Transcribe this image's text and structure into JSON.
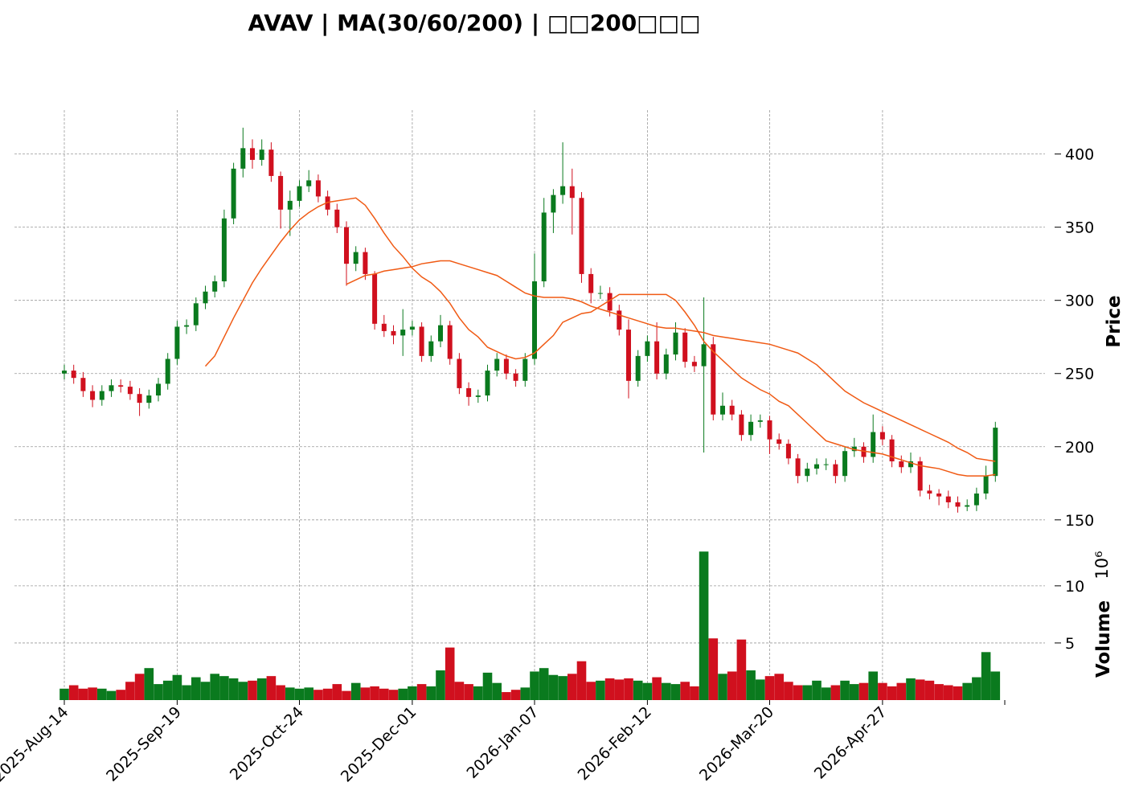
{
  "chart_data": {
    "type": "candlestick",
    "title": "AVAV  |  MA(30/60/200)  |  □□200□□□",
    "categories": [
      "2025-Aug-14",
      null,
      null,
      null,
      null,
      null,
      null,
      null,
      null,
      null,
      null,
      null,
      "2025-Sep-19",
      null,
      null,
      null,
      null,
      null,
      null,
      null,
      null,
      null,
      null,
      null,
      null,
      "2025-Oct-24",
      null,
      null,
      null,
      null,
      null,
      null,
      null,
      null,
      null,
      null,
      null,
      "2025-Dec-01",
      null,
      null,
      null,
      null,
      null,
      null,
      null,
      null,
      null,
      null,
      null,
      null,
      "2026-Jan-07",
      null,
      null,
      null,
      null,
      null,
      null,
      null,
      null,
      null,
      null,
      null,
      "2026-Feb-12",
      null,
      null,
      null,
      null,
      null,
      null,
      null,
      null,
      null,
      null,
      null,
      null,
      "2026-Mar-20",
      null,
      null,
      null,
      null,
      null,
      null,
      null,
      null,
      null,
      null,
      null,
      "2026-Apr-27",
      null,
      null,
      null,
      null,
      null,
      null,
      null,
      null,
      null,
      null,
      null,
      null
    ],
    "open": [
      250,
      252,
      247,
      238,
      232,
      238,
      242,
      241,
      236,
      230,
      235,
      243,
      260,
      282,
      283,
      298,
      306,
      313,
      356,
      390,
      404,
      396,
      403,
      385,
      362,
      368,
      378,
      382,
      371,
      362,
      350,
      325,
      333,
      318,
      284,
      279,
      276,
      280,
      282,
      262,
      272,
      283,
      260,
      240,
      234,
      235,
      252,
      260,
      250,
      245,
      260,
      313,
      360,
      372,
      378,
      370,
      318,
      305,
      305,
      293,
      280,
      245,
      262,
      272,
      250,
      263,
      278,
      258,
      255,
      270,
      222,
      228,
      222,
      208,
      217,
      218,
      205,
      202,
      192,
      180,
      185,
      188,
      188,
      180,
      197,
      200,
      193,
      210,
      205,
      190,
      186,
      190,
      170,
      168,
      166,
      162,
      159,
      160,
      168,
      180
    ],
    "high": [
      256,
      256,
      251,
      242,
      242,
      246,
      246,
      245,
      240,
      239,
      247,
      264,
      286,
      287,
      302,
      310,
      317,
      362,
      394,
      418,
      410,
      410,
      408,
      388,
      375,
      382,
      389,
      386,
      375,
      366,
      354,
      337,
      336,
      320,
      290,
      283,
      294,
      286,
      285,
      276,
      290,
      286,
      264,
      244,
      239,
      256,
      264,
      263,
      253,
      264,
      332,
      370,
      376,
      408,
      390,
      374,
      322,
      310,
      309,
      297,
      287,
      266,
      276,
      285,
      267,
      285,
      281,
      262,
      302,
      275,
      237,
      232,
      225,
      222,
      222,
      221,
      209,
      205,
      195,
      189,
      192,
      192,
      191,
      200,
      206,
      203,
      222,
      214,
      208,
      194,
      196,
      193,
      174,
      171,
      170,
      166,
      164,
      172,
      187,
      217
    ],
    "low": [
      246,
      243,
      234,
      227,
      228,
      234,
      237,
      232,
      221,
      226,
      231,
      239,
      256,
      277,
      279,
      294,
      302,
      309,
      352,
      384,
      390,
      392,
      381,
      349,
      344,
      364,
      374,
      367,
      358,
      346,
      310,
      320,
      314,
      280,
      275,
      270,
      262,
      276,
      258,
      258,
      268,
      256,
      236,
      228,
      230,
      231,
      248,
      246,
      241,
      241,
      256,
      309,
      346,
      366,
      345,
      312,
      298,
      301,
      289,
      276,
      233,
      241,
      258,
      246,
      246,
      259,
      254,
      251,
      196,
      218,
      218,
      218,
      204,
      204,
      213,
      195,
      198,
      188,
      175,
      176,
      181,
      184,
      175,
      176,
      193,
      189,
      189,
      201,
      186,
      182,
      182,
      166,
      164,
      160,
      158,
      155,
      156,
      156,
      164,
      176
    ],
    "close": [
      252,
      247,
      238,
      232,
      238,
      242,
      241,
      236,
      230,
      235,
      243,
      260,
      282,
      283,
      298,
      306,
      313,
      356,
      390,
      404,
      396,
      403,
      385,
      362,
      368,
      378,
      382,
      371,
      362,
      350,
      325,
      333,
      318,
      284,
      279,
      276,
      280,
      282,
      262,
      272,
      283,
      260,
      240,
      234,
      235,
      252,
      260,
      250,
      245,
      260,
      313,
      360,
      372,
      378,
      370,
      318,
      305,
      305,
      293,
      280,
      245,
      262,
      272,
      250,
      263,
      278,
      258,
      255,
      270,
      222,
      228,
      222,
      208,
      217,
      218,
      205,
      202,
      192,
      180,
      185,
      188,
      188,
      180,
      197,
      200,
      193,
      210,
      205,
      190,
      186,
      190,
      170,
      168,
      166,
      162,
      159,
      160,
      168,
      180,
      213
    ],
    "volume": [
      1.0,
      1.3,
      1.0,
      1.1,
      1.0,
      0.8,
      0.9,
      1.6,
      2.3,
      2.8,
      1.4,
      1.7,
      2.2,
      1.3,
      2.0,
      1.6,
      2.3,
      2.1,
      1.9,
      1.6,
      1.7,
      1.9,
      2.1,
      1.3,
      1.1,
      1.0,
      1.1,
      0.9,
      1.0,
      1.4,
      0.8,
      1.5,
      1.1,
      1.2,
      1.0,
      0.9,
      1.0,
      1.2,
      1.4,
      1.2,
      2.6,
      4.6,
      1.6,
      1.4,
      1.2,
      2.4,
      1.5,
      0.7,
      0.9,
      1.1,
      2.5,
      2.8,
      2.2,
      2.1,
      2.3,
      3.4,
      1.6,
      1.7,
      1.9,
      1.8,
      1.9,
      1.7,
      1.5,
      2.0,
      1.5,
      1.4,
      1.6,
      1.2,
      13.0,
      5.4,
      2.3,
      2.5,
      5.3,
      2.6,
      1.8,
      2.1,
      2.3,
      1.6,
      1.3,
      1.3,
      1.7,
      1.1,
      1.3,
      1.7,
      1.4,
      1.5,
      2.5,
      1.5,
      1.2,
      1.5,
      1.9,
      1.8,
      1.7,
      1.4,
      1.3,
      1.2,
      1.5,
      2.0,
      4.2,
      2.5
    ],
    "up_color": "#0a7a1e",
    "down_color": "#d0101e",
    "lines": [
      {
        "color": "#f05a14",
        "values": [
          null,
          null,
          null,
          null,
          null,
          null,
          null,
          null,
          null,
          null,
          null,
          null,
          null,
          null,
          null,
          255,
          262,
          275,
          288,
          300,
          312,
          322,
          331,
          340,
          348,
          355,
          360,
          364,
          367,
          368,
          369,
          370,
          365,
          356,
          346,
          337,
          330,
          322,
          316,
          312,
          306,
          298,
          288,
          280,
          275,
          268,
          265,
          262,
          260,
          261,
          264,
          270,
          276,
          285,
          288,
          291,
          292,
          296,
          300,
          304,
          304,
          304,
          304,
          304,
          304,
          300,
          292,
          283,
          272,
          265,
          259,
          253,
          247,
          243,
          239,
          236,
          231,
          228,
          222,
          216,
          210,
          204,
          202,
          200,
          198,
          197,
          196,
          195,
          193,
          191,
          189,
          187,
          186,
          185,
          183,
          181,
          180,
          180,
          180,
          181
        ]
      },
      {
        "color": "#f05a14",
        "values": [
          null,
          null,
          null,
          null,
          null,
          null,
          null,
          null,
          null,
          null,
          null,
          null,
          null,
          null,
          null,
          null,
          null,
          null,
          null,
          null,
          null,
          null,
          null,
          null,
          null,
          null,
          null,
          null,
          null,
          null,
          311,
          314,
          317,
          318,
          320,
          321,
          322,
          323,
          325,
          326,
          327,
          327,
          325,
          323,
          321,
          319,
          317,
          313,
          309,
          305,
          303,
          302,
          302,
          302,
          301,
          299,
          296,
          294,
          292,
          290,
          288,
          286,
          284,
          282,
          281,
          281,
          280,
          279,
          278,
          276,
          275,
          274,
          273,
          272,
          271,
          270,
          268,
          266,
          264,
          260,
          256,
          250,
          244,
          238,
          234,
          230,
          227,
          224,
          221,
          218,
          215,
          212,
          209,
          206,
          203,
          199,
          196,
          192,
          191,
          190
        ]
      }
    ],
    "ylim": [
      140,
      430
    ],
    "yticks": [
      150,
      200,
      250,
      300,
      350,
      400
    ],
    "y2lim": [
      0,
      14
    ],
    "y2ticks": [
      5,
      10
    ],
    "ylabel": "Price",
    "y2label": "Volume",
    "y2_scale": "10⁶",
    "grid": true
  }
}
